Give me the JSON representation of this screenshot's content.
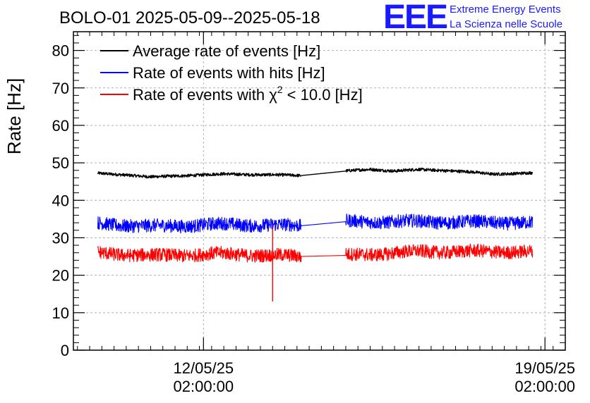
{
  "chart_data": {
    "type": "line",
    "title": "BOLO-01 2025-05-09--2025-05-18",
    "ylabel": "Rate [Hz]",
    "xlabel": "",
    "ylim": [
      0,
      85
    ],
    "yticks": [
      0,
      10,
      20,
      30,
      40,
      50,
      60,
      70,
      80
    ],
    "xrange": [
      "2025-05-09 10:00:00",
      "2025-05-19 12:00:00"
    ],
    "xticks": [
      {
        "date": "12/05/25",
        "time": "02:00:00",
        "x": "2025-05-12 02:00:00"
      },
      {
        "date": "19/05/25",
        "time": "02:00:00",
        "x": "2025-05-19 02:00:00"
      }
    ],
    "grid": true,
    "legend_position": "top-left",
    "data_start": "2025-05-09 22:00:00",
    "data_end": "2025-05-18 20:00:00",
    "gap": [
      "2025-05-14 02:00:00",
      "2025-05-15 00:00:00"
    ],
    "series": [
      {
        "name": "Average rate of events [Hz]",
        "color": "#000000",
        "noise": 0.4,
        "x": [
          "2025-05-09 22:00:00",
          "2025-05-10 12:00:00",
          "2025-05-11 00:00:00",
          "2025-05-11 12:00:00",
          "2025-05-12 12:00:00",
          "2025-05-13 12:00:00",
          "2025-05-14 02:00:00",
          "2025-05-15 00:00:00",
          "2025-05-15 12:00:00",
          "2025-05-16 00:00:00",
          "2025-05-16 12:00:00",
          "2025-05-17 00:00:00",
          "2025-05-17 12:00:00",
          "2025-05-18 00:00:00",
          "2025-05-18 20:00:00"
        ],
        "y": [
          47.2,
          46.8,
          46.2,
          46.5,
          47.0,
          46.8,
          46.6,
          47.8,
          48.3,
          47.8,
          48.2,
          48.0,
          47.6,
          47.0,
          47.3
        ]
      },
      {
        "name": "Rate of events with hits [Hz]",
        "color": "#0000ff",
        "noise": 1.8,
        "x": [
          "2025-05-09 22:00:00",
          "2025-05-11 00:00:00",
          "2025-05-12 12:00:00",
          "2025-05-14 02:00:00",
          "2025-05-15 00:00:00",
          "2025-05-16 12:00:00",
          "2025-05-18 20:00:00"
        ],
        "y": [
          33.8,
          33.0,
          33.6,
          33.2,
          34.3,
          34.3,
          34.0
        ]
      },
      {
        "name": "Rate of events with χ² < 10.0 [Hz]",
        "legend_main": "Rate of events with χ",
        "legend_sup": "2",
        "legend_tail": " < 10.0 [Hz]",
        "color": "#ff0000",
        "noise": 1.8,
        "x": [
          "2025-05-09 22:00:00",
          "2025-05-11 00:00:00",
          "2025-05-12 12:00:00",
          "2025-05-14 02:00:00",
          "2025-05-15 00:00:00",
          "2025-05-16 12:00:00",
          "2025-05-18 20:00:00"
        ],
        "y": [
          26.0,
          25.2,
          25.7,
          25.0,
          25.3,
          26.3,
          26.3
        ]
      }
    ],
    "spike": {
      "x": "2025-05-13 12:00:00",
      "y_min": 13.0,
      "y_max": 33.0
    }
  },
  "brand": {
    "logo": "EEE",
    "line1": "Extreme Energy Events",
    "line2": "La Scienza nelle Scuole",
    "color": "#1a1aff"
  }
}
